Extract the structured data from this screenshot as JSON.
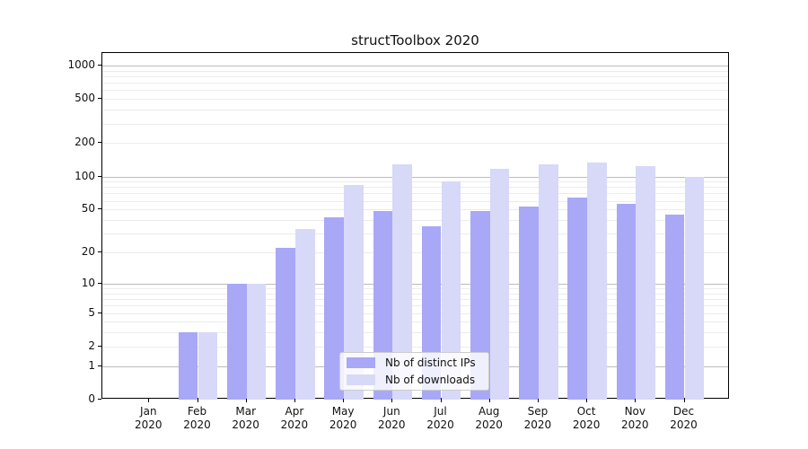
{
  "chart_data": {
    "type": "bar",
    "title": "structToolbox 2020",
    "categories": [
      "Jan",
      "Feb",
      "Mar",
      "Apr",
      "May",
      "Jun",
      "Jul",
      "Aug",
      "Sep",
      "Oct",
      "Nov",
      "Dec"
    ],
    "category_year": "2020",
    "series": [
      {
        "name": "Nb of distinct IPs",
        "color": "#a8a8f7",
        "values": [
          0,
          3,
          10,
          22,
          42,
          48,
          35,
          48,
          53,
          64,
          56,
          45
        ]
      },
      {
        "name": "Nb of downloads",
        "color": "#d8d8f9",
        "values": [
          0,
          3,
          10,
          33,
          83,
          128,
          90,
          117,
          130,
          133,
          123,
          100
        ]
      }
    ],
    "yscale": "log10(value+1)",
    "yticks": [
      0,
      1,
      2,
      5,
      10,
      20,
      50,
      100,
      200,
      500,
      1000
    ],
    "ylim": [
      0,
      1300
    ],
    "grid": {
      "horizontal": true,
      "minor_color": "#ececec",
      "major_color": "#bcbcbc"
    },
    "legend": {
      "position": "inside-bottom-center",
      "entries": [
        "Nb of distinct IPs",
        "Nb of downloads"
      ]
    },
    "axis_color": "#000000",
    "background_color": "#ffffff"
  }
}
